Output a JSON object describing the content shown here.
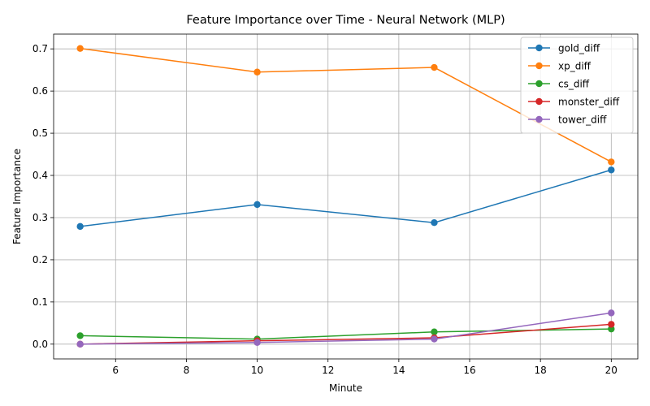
{
  "chart_data": {
    "type": "line",
    "title": "Feature Importance over Time - Neural Network (MLP)",
    "xlabel": "Minute",
    "ylabel": "Feature Importance",
    "x": [
      5,
      10,
      15,
      20
    ],
    "xlim": [
      4.25,
      20.75
    ],
    "ylim": [
      -0.035,
      0.735
    ],
    "xticks": [
      6,
      8,
      10,
      12,
      14,
      16,
      18,
      20
    ],
    "yticks": [
      0.0,
      0.1,
      0.2,
      0.3,
      0.4,
      0.5,
      0.6,
      0.7
    ],
    "grid": true,
    "legend_position": "top-right",
    "series": [
      {
        "name": "gold_diff",
        "color": "#1f77b4",
        "values": [
          0.279,
          0.331,
          0.288,
          0.413
        ]
      },
      {
        "name": "xp_diff",
        "color": "#ff7f0e",
        "values": [
          0.701,
          0.645,
          0.656,
          0.432
        ]
      },
      {
        "name": "cs_diff",
        "color": "#2ca02c",
        "values": [
          0.02,
          0.012,
          0.029,
          0.036
        ]
      },
      {
        "name": "monster_diff",
        "color": "#d62728",
        "values": [
          0.0,
          0.008,
          0.015,
          0.047
        ]
      },
      {
        "name": "tower_diff",
        "color": "#9467bd",
        "values": [
          0.0,
          0.004,
          0.012,
          0.074
        ]
      }
    ]
  }
}
